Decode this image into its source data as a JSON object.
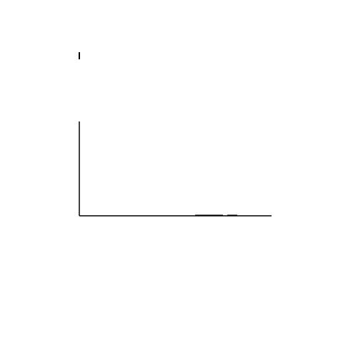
{
  "canvas": {
    "background": "#ffffff",
    "stroke_color": "#000000"
  },
  "marks": {
    "top_tick": "vertical-tick",
    "axis": "corner-axis",
    "baseline_segment_left": "baseline-segment",
    "baseline_segment_right": "baseline-segment"
  }
}
